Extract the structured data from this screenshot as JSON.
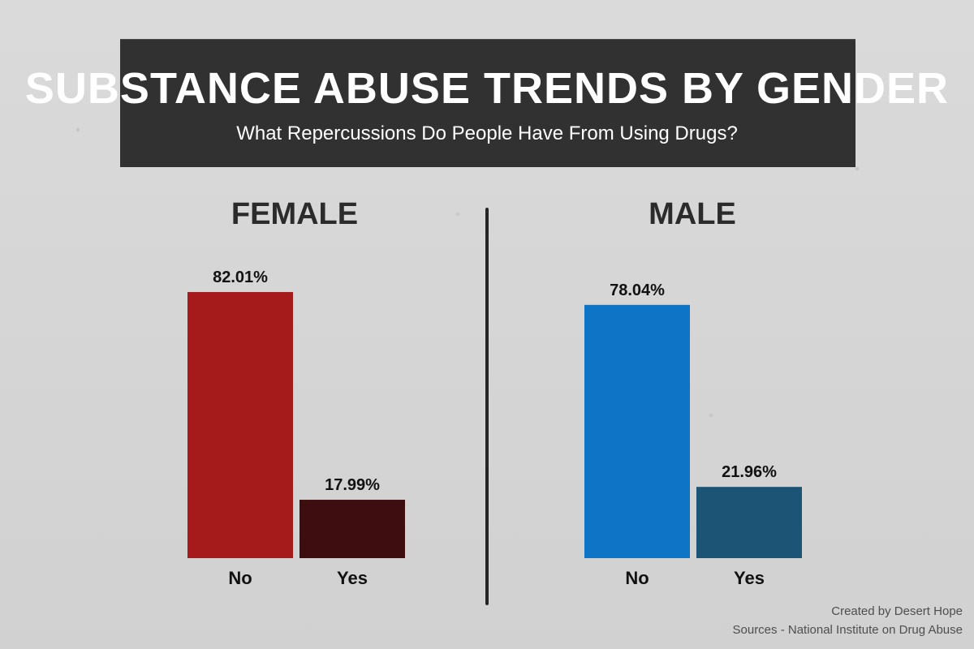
{
  "header": {
    "title": "SUBSTANCE ABUSE TRENDS BY GENDER",
    "subtitle": "What Repercussions Do People Have From Using Drugs?"
  },
  "footer": {
    "created_by": "Created by Desert Hope",
    "sources": "Sources - National Institute on Drug Abuse"
  },
  "chart_data": [
    {
      "type": "bar",
      "title": "FEMALE",
      "categories": [
        "No",
        "Yes"
      ],
      "values": [
        82.01,
        17.99
      ],
      "labels": [
        "82.01%",
        "17.99%"
      ],
      "colors": [
        "#a51b1b",
        "#3e0d10"
      ],
      "ylim": [
        0,
        100
      ],
      "grid": false
    },
    {
      "type": "bar",
      "title": "MALE",
      "categories": [
        "No",
        "Yes"
      ],
      "values": [
        78.04,
        21.96
      ],
      "labels": [
        "78.04%",
        "21.96%"
      ],
      "colors": [
        "#0e74c5",
        "#1b5475"
      ],
      "ylim": [
        0,
        100
      ],
      "grid": false
    }
  ]
}
